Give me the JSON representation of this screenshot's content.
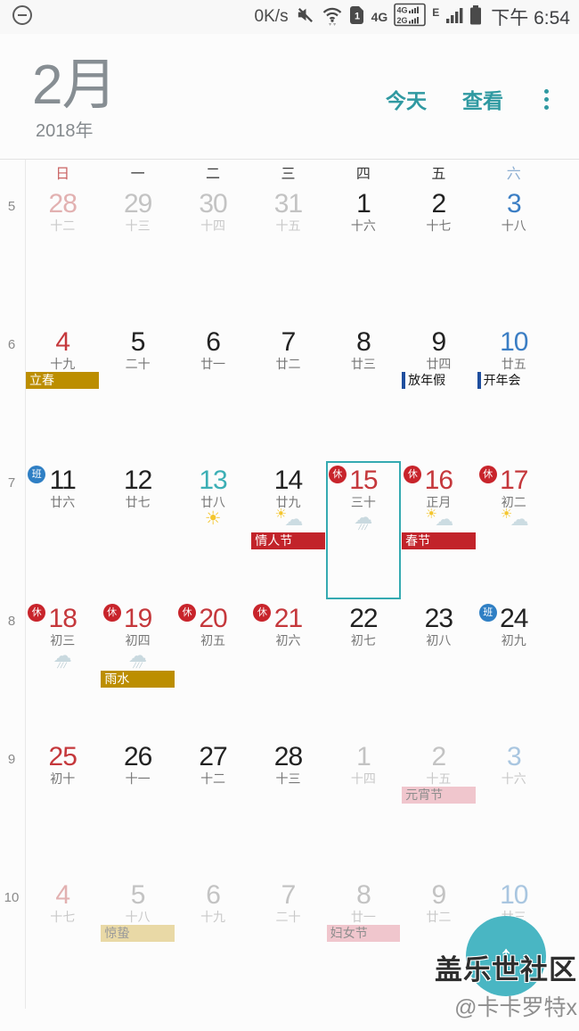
{
  "status_bar": {
    "net_speed": "0K/s",
    "network_type": "4G",
    "dual_sim_row1": "4G",
    "dual_sim_row2": "2G",
    "roaming": "E",
    "sim_number": "1",
    "time": "下午 6:54"
  },
  "header": {
    "month": "2月",
    "year": "2018年",
    "today_button": "今天",
    "view_button": "查看"
  },
  "calendar": {
    "dow": [
      "日",
      "一",
      "二",
      "三",
      "四",
      "五",
      "六"
    ],
    "weeks": [
      {
        "num": "5",
        "days": [
          {
            "date": "28",
            "lunar": "十二",
            "tone": "mred"
          },
          {
            "date": "29",
            "lunar": "十三",
            "tone": "mgray"
          },
          {
            "date": "30",
            "lunar": "十四",
            "tone": "mgray"
          },
          {
            "date": "31",
            "lunar": "十五",
            "tone": "mgray"
          },
          {
            "date": "1",
            "lunar": "十六",
            "tone": "black"
          },
          {
            "date": "2",
            "lunar": "十七",
            "tone": "black"
          },
          {
            "date": "3",
            "lunar": "十八",
            "tone": "blue"
          }
        ]
      },
      {
        "num": "6",
        "days": [
          {
            "date": "4",
            "lunar": "十九",
            "tone": "red",
            "events": [
              {
                "label": "立春",
                "style": "gold"
              }
            ]
          },
          {
            "date": "5",
            "lunar": "二十",
            "tone": "black"
          },
          {
            "date": "6",
            "lunar": "廿一",
            "tone": "black"
          },
          {
            "date": "7",
            "lunar": "廿二",
            "tone": "black"
          },
          {
            "date": "8",
            "lunar": "廿三",
            "tone": "black"
          },
          {
            "date": "9",
            "lunar": "廿四",
            "tone": "black",
            "events": [
              {
                "label": "放年假",
                "style": "ref"
              }
            ]
          },
          {
            "date": "10",
            "lunar": "廿五",
            "tone": "blue",
            "events": [
              {
                "label": "开年会",
                "style": "ref"
              }
            ]
          }
        ]
      },
      {
        "num": "7",
        "days": [
          {
            "date": "11",
            "lunar": "廿六",
            "tone": "black",
            "badge": {
              "text": "班",
              "type": "work"
            }
          },
          {
            "date": "12",
            "lunar": "廿七",
            "tone": "black"
          },
          {
            "date": "13",
            "lunar": "廿八",
            "tone": "today",
            "weather": "sun"
          },
          {
            "date": "14",
            "lunar": "廿九",
            "tone": "black",
            "weather": "suncloud",
            "events": [
              {
                "label": "情人节",
                "style": "red"
              }
            ]
          },
          {
            "date": "15",
            "lunar": "三十",
            "tone": "red",
            "badge": {
              "text": "休",
              "type": "rest"
            },
            "weather": "rain",
            "selected": true
          },
          {
            "date": "16",
            "lunar": "正月",
            "tone": "red",
            "badge": {
              "text": "休",
              "type": "rest"
            },
            "weather": "suncloud",
            "events": [
              {
                "label": "春节",
                "style": "red"
              }
            ]
          },
          {
            "date": "17",
            "lunar": "初二",
            "tone": "red",
            "badge": {
              "text": "休",
              "type": "rest"
            },
            "weather": "suncloud"
          }
        ]
      },
      {
        "num": "8",
        "days": [
          {
            "date": "18",
            "lunar": "初三",
            "tone": "red",
            "badge": {
              "text": "休",
              "type": "rest"
            },
            "weather": "rain"
          },
          {
            "date": "19",
            "lunar": "初四",
            "tone": "red",
            "badge": {
              "text": "休",
              "type": "rest"
            },
            "weather": "rain",
            "events": [
              {
                "label": "雨水",
                "style": "gold"
              }
            ]
          },
          {
            "date": "20",
            "lunar": "初五",
            "tone": "red",
            "badge": {
              "text": "休",
              "type": "rest"
            }
          },
          {
            "date": "21",
            "lunar": "初六",
            "tone": "red",
            "badge": {
              "text": "休",
              "type": "rest"
            }
          },
          {
            "date": "22",
            "lunar": "初七",
            "tone": "black"
          },
          {
            "date": "23",
            "lunar": "初八",
            "tone": "black"
          },
          {
            "date": "24",
            "lunar": "初九",
            "tone": "black",
            "badge": {
              "text": "班",
              "type": "work"
            }
          }
        ]
      },
      {
        "num": "9",
        "days": [
          {
            "date": "25",
            "lunar": "初十",
            "tone": "red"
          },
          {
            "date": "26",
            "lunar": "十一",
            "tone": "black"
          },
          {
            "date": "27",
            "lunar": "十二",
            "tone": "black"
          },
          {
            "date": "28",
            "lunar": "十三",
            "tone": "black"
          },
          {
            "date": "1",
            "lunar": "十四",
            "tone": "mgray"
          },
          {
            "date": "2",
            "lunar": "十五",
            "tone": "mgray",
            "events": [
              {
                "label": "元宵节",
                "style": "pink"
              }
            ]
          },
          {
            "date": "3",
            "lunar": "十六",
            "tone": "mblue"
          }
        ]
      },
      {
        "num": "10",
        "days": [
          {
            "date": "4",
            "lunar": "十七",
            "tone": "mred"
          },
          {
            "date": "5",
            "lunar": "十八",
            "tone": "mgray",
            "events": [
              {
                "label": "惊蛰",
                "style": "tan"
              }
            ]
          },
          {
            "date": "6",
            "lunar": "十九",
            "tone": "mgray"
          },
          {
            "date": "7",
            "lunar": "二十",
            "tone": "mgray"
          },
          {
            "date": "8",
            "lunar": "廿一",
            "tone": "mgray",
            "events": [
              {
                "label": "妇女节",
                "style": "pink"
              }
            ]
          },
          {
            "date": "9",
            "lunar": "廿二",
            "tone": "mgray"
          },
          {
            "date": "10",
            "lunar": "廿三",
            "tone": "mblue"
          }
        ]
      }
    ]
  },
  "fab": {
    "icon": "↑"
  },
  "watermark": {
    "line1": "盖乐世社区",
    "line2": "@卡卡罗特x"
  },
  "colors": {
    "accent_teal": "#2f99a1",
    "today_teal": "#3cafb5",
    "selection_teal": "#35aab1",
    "holiday_red": "#c5383c",
    "badge_red": "#c8242b",
    "work_blue": "#2f7fc4",
    "saturday_blue": "#3b7ec4",
    "header_sun_red": "#ca6262",
    "header_sat_blue": "#8fb0d3",
    "event_red": "#c2232a",
    "event_gold": "#bc8e00",
    "event_pink": "#f0c6cd",
    "event_tan": "#e9d9a6",
    "ref_blue": "#1f4e9e",
    "fab_teal": "#49b6c3",
    "muted_red": "#e2b1b1",
    "muted_blue": "#a9c6e0"
  }
}
